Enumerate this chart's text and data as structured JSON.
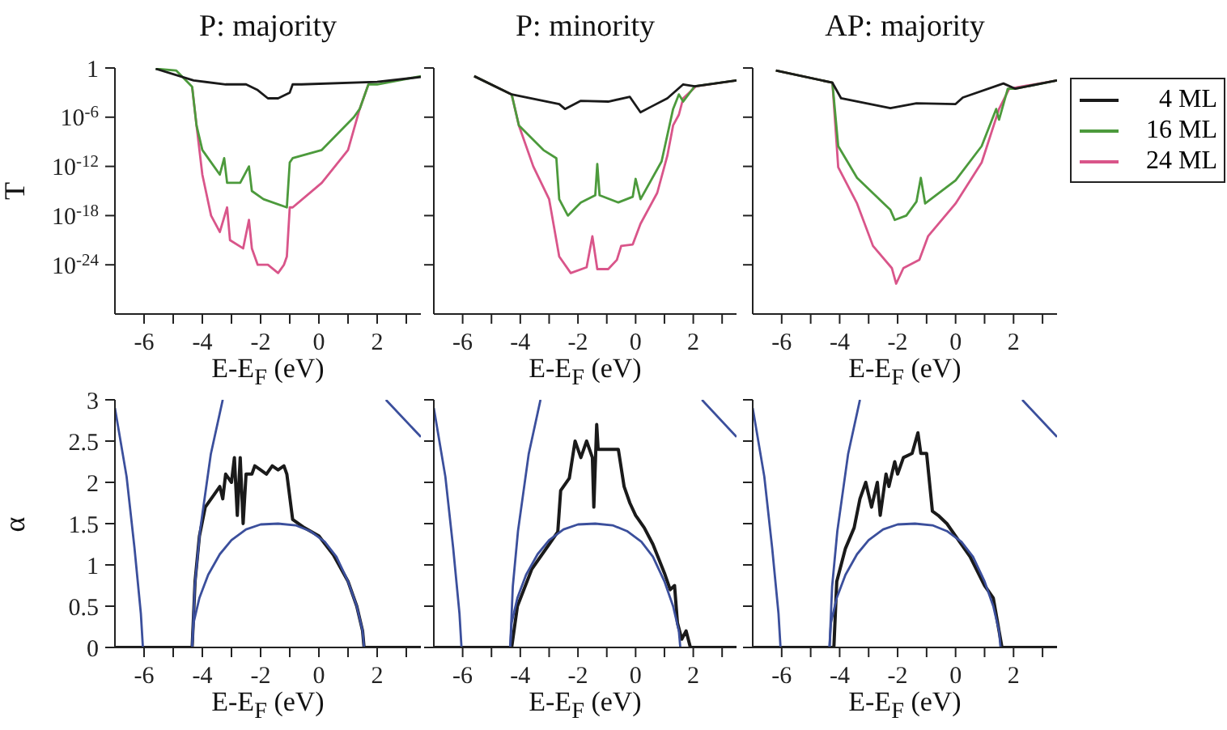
{
  "chart_data": [
    {
      "type": "line",
      "title": "P: majority",
      "xlabel": "E-E$_{F}$ (eV)",
      "ylabel": "T",
      "log": "y",
      "xlim": [
        -7,
        3.5
      ],
      "xticks": [
        -6,
        {
          "value": -5,
          "label": null
        },
        -4,
        {
          "value": -3,
          "label": null
        },
        -2,
        {
          "value": -1,
          "label": null
        },
        0,
        {
          "value": 1,
          "label": null
        },
        2,
        {
          "value": 3,
          "label": null
        }
      ],
      "ylim": [
        1e-30,
        1
      ],
      "yticks": [
        1,
        {
          "value": 1e-06,
          "label": "10$^{-6}$"
        },
        {
          "value": 1e-12,
          "label": "10$^{-12}$"
        },
        {
          "value": 1e-18,
          "label": "10$^{-18}$"
        },
        {
          "value": 1e-24,
          "label": "10$^{-24}$"
        }
      ],
      "series": [
        {
          "color": "#d9558a",
          "x": [
            -4.35,
            -4.2,
            -4.0,
            -3.7,
            -3.4,
            -3.15,
            -3.05,
            -2.6,
            -2.4,
            -2.3,
            -2.1,
            -1.75,
            -1.4,
            -1.2,
            -1.1,
            -1.0,
            -0.9,
            0.1,
            1.0,
            1.4,
            1.7
          ],
          "values": [
            0.005,
            1e-07,
            1e-13,
            1e-18,
            1e-20,
            1e-17,
            1e-21,
            1e-22,
            3e-19,
            1e-22,
            1e-24,
            1e-24,
            1e-25,
            1e-24,
            1e-23,
            1e-17,
            1e-17,
            1e-14,
            1e-10,
            1e-05,
            0.01
          ]
        },
        {
          "color": "#4c9a3c",
          "x": [
            -5.6,
            -4.9,
            -4.35,
            -4.2,
            -4.0,
            -3.4,
            -3.25,
            -3.15,
            -2.7,
            -2.4,
            -2.3,
            -1.9,
            -1.1,
            -1.0,
            -0.9,
            0.1,
            1.2,
            1.4,
            1.7,
            2.0,
            3.5
          ],
          "values": [
            0.8,
            0.5,
            0.005,
            1e-07,
            1e-10,
            1e-13,
            1e-11,
            1e-14,
            1e-14,
            1e-12,
            1e-15,
            1e-16,
            1e-17,
            3e-12,
            1e-11,
            1e-10,
            1e-06,
            1e-05,
            0.01,
            0.01,
            0.1
          ]
        },
        {
          "color": "#1a1a1a",
          "x": [
            -5.6,
            -4.3,
            -3.2,
            -2.5,
            -2.1,
            -1.75,
            -1.4,
            -1.0,
            -0.9,
            -0.6,
            2.0,
            3.5
          ],
          "values": [
            0.8,
            0.03,
            0.01,
            0.01,
            0.002,
            0.0002,
            0.0002,
            0.001,
            0.01,
            0.01,
            0.02,
            0.08
          ]
        }
      ]
    },
    {
      "type": "line",
      "title": "P: minority",
      "xlabel": "E-E$_{F}$ (eV)",
      "log": "y",
      "tick_labels": "x",
      "xlim": [
        -7,
        3.5
      ],
      "xticks": [
        -6,
        {
          "value": -5,
          "label": null
        },
        -4,
        {
          "value": -3,
          "label": null
        },
        -2,
        {
          "value": -1,
          "label": null
        },
        0,
        {
          "value": 1,
          "label": null
        },
        2,
        {
          "value": 3,
          "label": null
        }
      ],
      "ylim": [
        1e-30,
        1
      ],
      "yticks": [
        1,
        {
          "value": 1e-06,
          "label": null
        },
        {
          "value": 1e-12,
          "label": null
        },
        {
          "value": 1e-18,
          "label": null
        },
        {
          "value": 1e-24,
          "label": null
        }
      ],
      "series": [
        {
          "color": "#d9558a",
          "x": [
            -5.6,
            -4.3,
            -4.05,
            -3.55,
            -3.0,
            -2.65,
            -2.25,
            -1.7,
            -1.5,
            -1.33,
            -0.95,
            -0.65,
            -0.5,
            -0.1,
            0.17,
            0.75,
            1.1,
            1.3,
            1.5,
            1.65,
            2.1,
            3.5
          ],
          "values": [
            0.1,
            0.0006,
            1e-07,
            1e-12,
            1e-16,
            1e-23,
            1e-25,
            5e-25,
            3e-21,
            3e-25,
            3e-25,
            4e-24,
            2e-22,
            3e-22,
            1e-19,
            6e-16,
            2e-11,
            1e-07,
            2e-06,
            0.0002,
            0.006,
            0.03
          ]
        },
        {
          "color": "#4c9a3c",
          "x": [
            -5.6,
            -4.3,
            -4.05,
            -3.2,
            -2.75,
            -2.65,
            -2.35,
            -1.9,
            -1.4,
            -1.33,
            -1.25,
            -0.6,
            -0.1,
            0.0,
            0.17,
            0.9,
            1.3,
            1.5,
            1.65,
            2.05,
            3.5
          ],
          "values": [
            0.1,
            0.0006,
            1e-07,
            1e-10,
            1e-11,
            1e-16,
            1e-18,
            4e-17,
            3e-16,
            2e-12,
            3e-16,
            4e-17,
            2e-16,
            3e-14,
            1e-16,
            4e-12,
            1e-05,
            0.0006,
            8e-05,
            0.006,
            0.03
          ]
        },
        {
          "color": "#1a1a1a",
          "x": [
            -5.6,
            -4.3,
            -2.65,
            -2.45,
            -1.9,
            -0.95,
            -0.2,
            0.17,
            0.55,
            1.1,
            1.65,
            2.05,
            3.5
          ],
          "values": [
            0.1,
            0.0006,
            4e-05,
            1e-05,
            0.0001,
            8e-05,
            0.0003,
            4e-06,
            2e-05,
            0.0002,
            0.01,
            0.006,
            0.03
          ]
        }
      ]
    },
    {
      "type": "line",
      "title": "AP: majority",
      "xlabel": "E-E$_{F}$ (eV)",
      "log": "y",
      "tick_labels": "x",
      "legend": "right",
      "xlim": [
        -7,
        3.5
      ],
      "xticks": [
        -6,
        {
          "value": -5,
          "label": null
        },
        -4,
        {
          "value": -3,
          "label": null
        },
        -2,
        {
          "value": -1,
          "label": null
        },
        0,
        {
          "value": 1,
          "label": null
        },
        2,
        {
          "value": 3,
          "label": null
        }
      ],
      "ylim": [
        1e-30,
        1
      ],
      "yticks": [
        1,
        {
          "value": 1e-06,
          "label": null
        },
        {
          "value": 1e-12,
          "label": null
        },
        {
          "value": 1e-18,
          "label": null
        },
        {
          "value": 1e-24,
          "label": null
        }
      ],
      "series": [
        {
          "name": "24 ML",
          "color": "#d9558a",
          "x": [
            -6.2,
            -4.25,
            -4.05,
            -3.4,
            -2.85,
            -2.2,
            -2.05,
            -1.8,
            -1.25,
            -0.95,
            0.0,
            0.9,
            1.5,
            1.85,
            3.5
          ],
          "values": [
            0.5,
            0.016,
            8e-13,
            3e-17,
            2e-22,
            4e-25,
            5e-27,
            4e-25,
            4e-24,
            3e-21,
            3e-17,
            3e-12,
            1e-05,
            0.003,
            0.03
          ]
        },
        {
          "name": "16 ML",
          "color": "#4c9a3c",
          "x": [
            -6.2,
            -4.25,
            -4.05,
            -3.4,
            -2.25,
            -2.1,
            -1.7,
            -1.35,
            -1.2,
            -1.05,
            0.0,
            0.9,
            1.4,
            1.5,
            1.8,
            2.05,
            3.5
          ],
          "values": [
            0.5,
            0.016,
            3e-10,
            4e-14,
            5e-18,
            3e-19,
            1e-18,
            5e-17,
            4e-14,
            3e-17,
            2e-14,
            3e-10,
            1e-05,
            5e-07,
            0.003,
            0.003,
            0.03
          ]
        },
        {
          "name": "4 ML",
          "color": "#1a1a1a",
          "x": [
            -6.2,
            -4.25,
            -3.95,
            -2.25,
            -1.35,
            0.0,
            0.25,
            1.65,
            2.05,
            3.5
          ],
          "values": [
            0.5,
            0.016,
            0.0002,
            1.3e-05,
            5e-05,
            4e-05,
            0.00025,
            0.013,
            0.003,
            0.03
          ]
        }
      ]
    },
    {
      "type": "line",
      "xlabel": "E-E$_{F}$ (eV)",
      "ylabel": "α",
      "xlim": [
        -7,
        3.5
      ],
      "xticks": [
        -6,
        {
          "value": -5,
          "label": null
        },
        -4,
        {
          "value": -3,
          "label": null
        },
        -2,
        {
          "value": -1,
          "label": null
        },
        0,
        {
          "value": 1,
          "label": null
        },
        2,
        {
          "value": 3,
          "label": null
        }
      ],
      "ylim": [
        0,
        3
      ],
      "yticks": [
        0,
        0.5,
        1,
        1.5,
        2,
        2.5,
        3
      ],
      "series": [
        {
          "color": "#1a1a1a",
          "x": [
            -7,
            -4.35,
            -4.25,
            -4.1,
            -3.9,
            -3.6,
            -3.4,
            -3.3,
            -3.2,
            -3.0,
            -2.9,
            -2.8,
            -2.7,
            -2.6,
            -2.5,
            -2.3,
            -2.2,
            -2.0,
            -1.8,
            -1.6,
            -1.4,
            -1.2,
            -1.1,
            -0.9,
            -0.5,
            0.0,
            0.5,
            1.0,
            1.3,
            1.5,
            1.55,
            3.5
          ],
          "values": [
            0,
            0,
            0.8,
            1.35,
            1.7,
            1.85,
            1.95,
            1.8,
            2.1,
            2.0,
            2.3,
            1.6,
            2.3,
            1.5,
            2.1,
            2.1,
            2.2,
            2.15,
            2.1,
            2.2,
            2.15,
            2.2,
            2.1,
            1.55,
            1.45,
            1.35,
            1.12,
            0.8,
            0.5,
            0.2,
            0,
            0
          ]
        },
        {
          "color": "#3b4f9c",
          "x": [
            -7,
            -6.6,
            -6.33,
            -6.11,
            -6.04,
            -5.5,
            -4.35,
            -4.26,
            -4.08,
            -3.71,
            -3.3,
            0,
            2.3,
            3.5
          ],
          "values": [
            2.9,
            2.07,
            1.21,
            0.41,
            0,
            null,
            0,
            0.74,
            1.41,
            2.34,
            3,
            null,
            3,
            2.55
          ]
        },
        {
          "color": "#3b4f9c",
          "x": [
            -4.35,
            -4.3,
            -4.1,
            -3.8,
            -3.4,
            -3,
            -2.5,
            -2,
            -1.4,
            -0.8,
            -0.3,
            0.2,
            0.6,
            1.0,
            1.3,
            1.5,
            1.55
          ],
          "values": [
            0,
            0.3,
            0.6,
            0.88,
            1.13,
            1.3,
            1.43,
            1.49,
            1.5,
            1.48,
            1.41,
            1.28,
            1.1,
            0.8,
            0.5,
            0.2,
            0
          ]
        }
      ]
    },
    {
      "type": "line",
      "xlabel": "E-E$_{F}$ (eV)",
      "tick_labels": "x",
      "xlim": [
        -7,
        3.5
      ],
      "xticks": [
        -6,
        {
          "value": -5,
          "label": null
        },
        -4,
        {
          "value": -3,
          "label": null
        },
        -2,
        {
          "value": -1,
          "label": null
        },
        0,
        {
          "value": 1,
          "label": null
        },
        2,
        {
          "value": 3,
          "label": null
        }
      ],
      "ylim": [
        0,
        3
      ],
      "yticks": [
        0,
        0.5,
        1,
        1.5,
        2,
        2.5,
        3
      ],
      "series": [
        {
          "color": "#1a1a1a",
          "x": [
            -7,
            -4.3,
            -4.1,
            -3.6,
            -3.0,
            -2.7,
            -2.6,
            -2.3,
            -2.1,
            -1.9,
            -1.7,
            -1.5,
            -1.45,
            -1.35,
            -1.3,
            -1.0,
            -0.6,
            -0.4,
            -0.2,
            0.0,
            0.1,
            0.3,
            0.6,
            1.0,
            1.2,
            1.35,
            1.45,
            1.6,
            1.75,
            1.9,
            3.5
          ],
          "values": [
            0,
            0,
            0.5,
            0.95,
            1.25,
            1.4,
            1.9,
            2.05,
            2.5,
            2.3,
            2.5,
            2.3,
            1.7,
            2.7,
            2.4,
            2.4,
            2.4,
            1.95,
            1.75,
            1.6,
            1.55,
            1.45,
            1.25,
            0.9,
            0.7,
            0.75,
            0.3,
            0.1,
            0.2,
            0,
            0
          ]
        },
        {
          "color": "#3b4f9c",
          "x": [
            -7,
            -6.6,
            -6.33,
            -6.11,
            -6.04,
            -5.5,
            -4.35,
            -4.26,
            -4.08,
            -3.71,
            -3.3,
            0,
            2.3,
            3.5
          ],
          "values": [
            2.9,
            2.07,
            1.21,
            0.41,
            0,
            null,
            0,
            0.74,
            1.41,
            2.34,
            3,
            null,
            3,
            2.55
          ]
        },
        {
          "color": "#3b4f9c",
          "x": [
            -4.35,
            -4.3,
            -4.1,
            -3.8,
            -3.4,
            -3,
            -2.5,
            -2,
            -1.4,
            -0.8,
            -0.3,
            0.2,
            0.6,
            1.0,
            1.3,
            1.5,
            1.55
          ],
          "values": [
            0,
            0.3,
            0.6,
            0.88,
            1.13,
            1.3,
            1.43,
            1.49,
            1.5,
            1.48,
            1.41,
            1.28,
            1.1,
            0.8,
            0.5,
            0.2,
            0
          ]
        }
      ]
    },
    {
      "type": "line",
      "xlabel": "E-E$_{F}$ (eV)",
      "tick_labels": "x",
      "xlim": [
        -7,
        3.5
      ],
      "xticks": [
        -6,
        {
          "value": -5,
          "label": null
        },
        -4,
        {
          "value": -3,
          "label": null
        },
        -2,
        {
          "value": -1,
          "label": null
        },
        0,
        {
          "value": 1,
          "label": null
        },
        2,
        {
          "value": 3,
          "label": null
        }
      ],
      "ylim": [
        0,
        3
      ],
      "yticks": [
        0,
        0.5,
        1,
        1.5,
        2,
        2.5,
        3
      ],
      "series": [
        {
          "color": "#1a1a1a",
          "x": [
            -7,
            -4.2,
            -4.1,
            -3.8,
            -3.5,
            -3.3,
            -3.1,
            -2.9,
            -2.7,
            -2.6,
            -2.4,
            -2.3,
            -2.1,
            -2.0,
            -1.8,
            -1.5,
            -1.3,
            -1.2,
            -1.0,
            -0.8,
            -0.6,
            -0.3,
            0.0,
            0.5,
            1.0,
            1.3,
            1.5,
            1.6,
            3.5
          ],
          "values": [
            0,
            0,
            0.8,
            1.2,
            1.45,
            1.8,
            2.0,
            1.7,
            2.0,
            1.6,
            2.1,
            1.95,
            2.25,
            2.1,
            2.3,
            2.35,
            2.6,
            2.35,
            2.35,
            1.65,
            1.6,
            1.5,
            1.35,
            1.1,
            0.75,
            0.6,
            0.2,
            0,
            0
          ]
        },
        {
          "color": "#3b4f9c",
          "x": [
            -7,
            -6.6,
            -6.33,
            -6.11,
            -6.04,
            -5.5,
            -4.35,
            -4.26,
            -4.08,
            -3.71,
            -3.3,
            0,
            2.3,
            3.5
          ],
          "values": [
            2.9,
            2.07,
            1.21,
            0.41,
            0,
            null,
            0,
            0.74,
            1.41,
            2.34,
            3,
            null,
            3,
            2.55
          ]
        },
        {
          "color": "#3b4f9c",
          "x": [
            -4.35,
            -4.3,
            -4.1,
            -3.8,
            -3.4,
            -3,
            -2.5,
            -2,
            -1.4,
            -0.8,
            -0.3,
            0.2,
            0.6,
            1.0,
            1.3,
            1.5,
            1.55
          ],
          "values": [
            0,
            0.3,
            0.6,
            0.88,
            1.13,
            1.3,
            1.43,
            1.49,
            1.5,
            1.48,
            1.41,
            1.28,
            1.1,
            0.8,
            0.5,
            0.2,
            0
          ]
        }
      ]
    }
  ]
}
